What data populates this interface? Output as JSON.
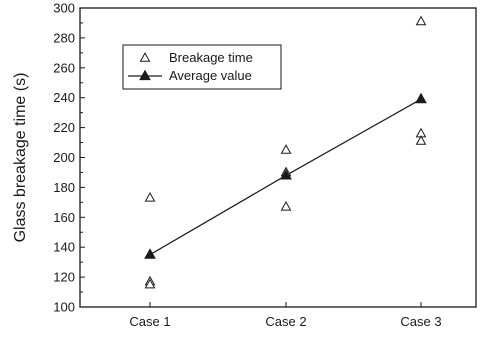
{
  "chart_data": {
    "type": "scatter",
    "ylabel": "Glass breakage time (s)",
    "xlabel": "",
    "categories": [
      "Case 1",
      "Case 2",
      "Case 3"
    ],
    "ylim": [
      100,
      300
    ],
    "yticks": [
      100,
      120,
      140,
      160,
      180,
      200,
      220,
      240,
      260,
      280,
      300
    ],
    "grid": false,
    "legend_position": "top-left",
    "series": [
      {
        "name": "Breakage time",
        "marker": "open-triangle",
        "points": [
          {
            "category": "Case 1",
            "value": 173
          },
          {
            "category": "Case 1",
            "value": 117
          },
          {
            "category": "Case 1",
            "value": 115
          },
          {
            "category": "Case 2",
            "value": 205
          },
          {
            "category": "Case 2",
            "value": 190
          },
          {
            "category": "Case 2",
            "value": 167
          },
          {
            "category": "Case 3",
            "value": 291
          },
          {
            "category": "Case 3",
            "value": 216
          },
          {
            "category": "Case 3",
            "value": 211
          }
        ]
      },
      {
        "name": "Average value",
        "marker": "filled-triangle-line",
        "points": [
          {
            "category": "Case 1",
            "value": 135
          },
          {
            "category": "Case 2",
            "value": 188
          },
          {
            "category": "Case 3",
            "value": 239
          }
        ]
      }
    ],
    "colors": {
      "axis": "#1a1a1a",
      "marker": "#1a1a1a",
      "line": "#1a1a1a"
    }
  }
}
